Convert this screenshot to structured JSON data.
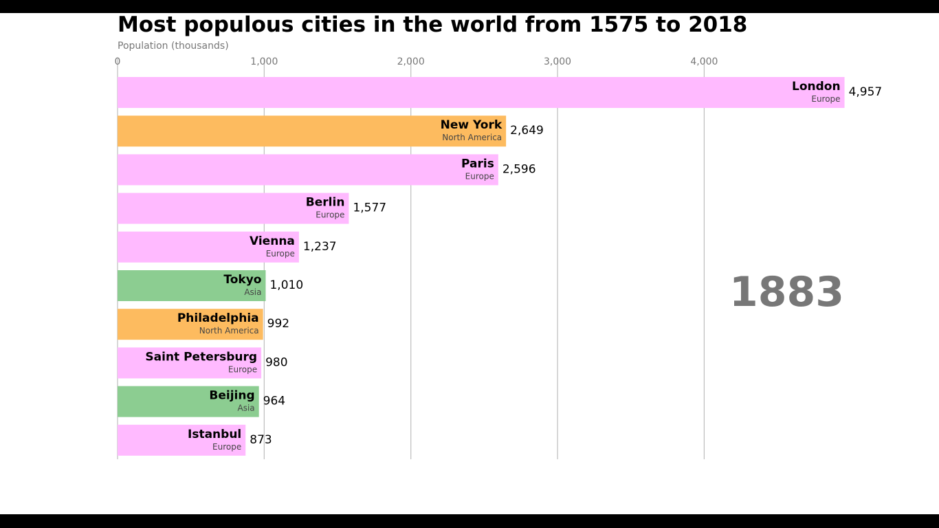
{
  "chart_data": {
    "type": "bar",
    "orientation": "horizontal",
    "title": "Most populous cities in the world from 1575 to 2018",
    "xlabel": "Population (thousands)",
    "xlim": [
      0,
      5000
    ],
    "xticks": [
      0,
      1000,
      2000,
      3000,
      4000
    ],
    "xtick_labels": [
      "0",
      "1,000",
      "2,000",
      "3,000",
      "4,000"
    ],
    "grid": true,
    "year": "1883",
    "region_colors": {
      "Europe": "#ffbaff",
      "North America": "#fdbb5f",
      "Asia": "#8ccd91"
    },
    "bars": [
      {
        "city": "London",
        "region": "Europe",
        "value": 4957,
        "value_label": "4,957"
      },
      {
        "city": "New York",
        "region": "North America",
        "value": 2649,
        "value_label": "2,649"
      },
      {
        "city": "Paris",
        "region": "Europe",
        "value": 2596,
        "value_label": "2,596"
      },
      {
        "city": "Berlin",
        "region": "Europe",
        "value": 1577,
        "value_label": "1,577"
      },
      {
        "city": "Vienna",
        "region": "Europe",
        "value": 1237,
        "value_label": "1,237"
      },
      {
        "city": "Tokyo",
        "region": "Asia",
        "value": 1010,
        "value_label": "1,010"
      },
      {
        "city": "Philadelphia",
        "region": "North America",
        "value": 992,
        "value_label": "992"
      },
      {
        "city": "Saint Petersburg",
        "region": "Europe",
        "value": 980,
        "value_label": "980"
      },
      {
        "city": "Beijing",
        "region": "Asia",
        "value": 964,
        "value_label": "964"
      },
      {
        "city": "Istanbul",
        "region": "Europe",
        "value": 873,
        "value_label": "873"
      }
    ]
  }
}
